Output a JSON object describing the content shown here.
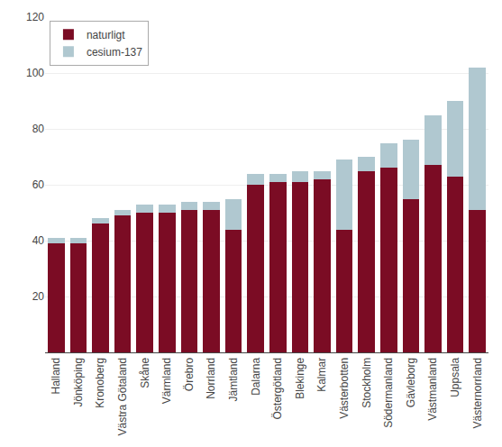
{
  "chart_data": {
    "type": "bar",
    "stacked": true,
    "categories": [
      "Halland",
      "Jönköping",
      "Kronoberg",
      "Västra Götaland",
      "Skåne",
      "Värmland",
      "Örebro",
      "Norrland",
      "Jämtland",
      "Dalarna",
      "Östergötland",
      "Blekinge",
      "Kalmar",
      "Västerbotten",
      "Stockholm",
      "Södermanland",
      "Gävleborg",
      "Västmanland",
      "Uppsala",
      "Västernorrland"
    ],
    "series": [
      {
        "name": "naturligt",
        "color": "#7b0c24",
        "values": [
          39,
          39,
          46,
          49,
          50,
          50,
          51,
          51,
          44,
          60,
          61,
          61,
          62,
          44,
          65,
          66,
          55,
          67,
          63,
          51
        ]
      },
      {
        "name": "cesium-137",
        "color": "#b0c8d0",
        "values": [
          2,
          2,
          2,
          2,
          3,
          3,
          3,
          3,
          11,
          4,
          3,
          4,
          3,
          25,
          5,
          9,
          21,
          18,
          27,
          51
        ]
      }
    ],
    "ylim": [
      0,
      120
    ],
    "yticks": [
      20,
      40,
      60,
      80,
      100,
      120
    ],
    "grid": true,
    "legend": "upper left"
  }
}
